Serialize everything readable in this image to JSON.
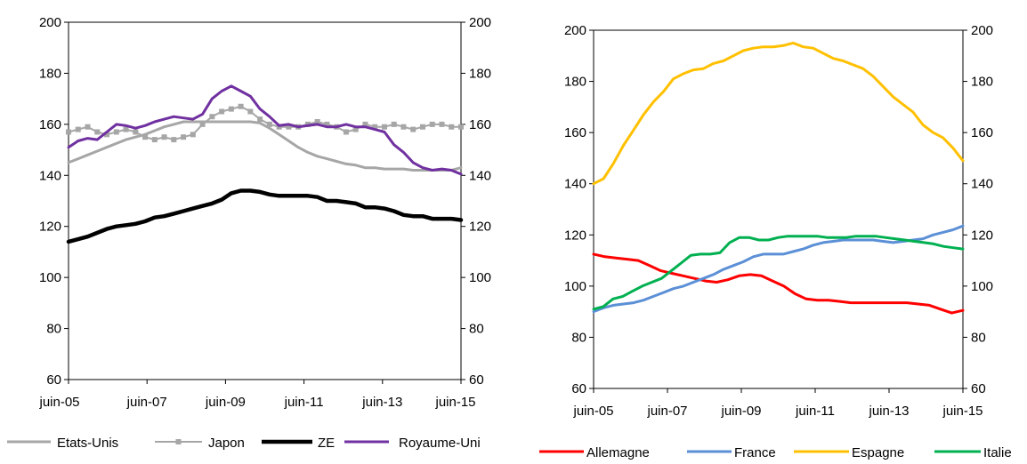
{
  "chart_data": [
    {
      "type": "line",
      "x_tick_labels": [
        "juin-05",
        "juin-07",
        "juin-09",
        "juin-11",
        "juin-13",
        "juin-15"
      ],
      "ylim": [
        60,
        200
      ],
      "y_ticks": [
        60,
        80,
        100,
        120,
        140,
        160,
        180,
        200
      ],
      "secondary_y_ticks": [
        60,
        80,
        100,
        120,
        140,
        160,
        180,
        200
      ],
      "grid": false,
      "legend_position": "bottom",
      "series": [
        {
          "name": "Etats-Unis",
          "color": "#a6a6a6",
          "marker": "none",
          "values": [
            145,
            146.5,
            148,
            149.5,
            151,
            152.5,
            154,
            155,
            156,
            157.5,
            159,
            160,
            161,
            161,
            161,
            161,
            161,
            161,
            161,
            161,
            160.5,
            158.5,
            156,
            153.5,
            151,
            149,
            147.5,
            146.5,
            145.5,
            144.5,
            144,
            143,
            143,
            142.5,
            142.5,
            142.5,
            142,
            142,
            142,
            142,
            142,
            143
          ]
        },
        {
          "name": "Japon",
          "color": "#a6a6a6",
          "marker": "square",
          "values": [
            157,
            158,
            159,
            157,
            156,
            157,
            158,
            157,
            155,
            154,
            155,
            154,
            155,
            156,
            160,
            163,
            165,
            166,
            167,
            165,
            162,
            160,
            159,
            159,
            159,
            160,
            161,
            160,
            159,
            157,
            158,
            160,
            159,
            159,
            160,
            159,
            158,
            159,
            160,
            160,
            159,
            159
          ]
        },
        {
          "name": "ZE",
          "color": "#000000",
          "marker": "none",
          "values": [
            114,
            115,
            116,
            117.5,
            119,
            120,
            120.5,
            121,
            122,
            123.5,
            124,
            125,
            126,
            127,
            128,
            129,
            130.5,
            133,
            134,
            134,
            133.5,
            132.5,
            132,
            132,
            132,
            132,
            131.5,
            130,
            130,
            129.5,
            129,
            127.5,
            127.5,
            127,
            126,
            124.5,
            124,
            124,
            123,
            123,
            123,
            122.5
          ]
        },
        {
          "name": "Royaume-Uni",
          "color": "#7030a0",
          "marker": "none",
          "values": [
            151,
            153.5,
            154.5,
            154,
            157,
            160,
            159.5,
            158.5,
            159.5,
            161,
            162,
            163,
            162.5,
            162,
            164,
            170,
            173,
            175,
            173,
            171,
            166,
            163,
            159.5,
            160,
            159,
            159.5,
            160,
            159,
            159,
            160,
            159,
            159,
            158,
            157,
            152,
            149,
            145,
            143,
            142,
            142.5,
            142,
            140.5
          ]
        }
      ]
    },
    {
      "type": "line",
      "x_tick_labels": [
        "juin-05",
        "juin-07",
        "juin-09",
        "juin-11",
        "juin-13",
        "juin-15"
      ],
      "ylim": [
        60,
        200
      ],
      "y_ticks": [
        60,
        80,
        100,
        120,
        140,
        160,
        180,
        200
      ],
      "secondary_y_ticks": [
        60,
        80,
        100,
        120,
        140,
        160,
        180,
        200
      ],
      "grid": false,
      "legend_position": "bottom",
      "series": [
        {
          "name": "Allemagne",
          "color": "#ff0000",
          "values": [
            112.5,
            111.5,
            111,
            110.5,
            110,
            108,
            106,
            105,
            104,
            103,
            102,
            101.5,
            102.5,
            104,
            104.5,
            104,
            102,
            100,
            97,
            95,
            94.5,
            94.5,
            94,
            93.5,
            93.5,
            93.5,
            93.5,
            93.5,
            93.5,
            93,
            92.5,
            91,
            89.5,
            90.5
          ]
        },
        {
          "name": "France",
          "color": "#5b8fd6",
          "values": [
            90,
            91.5,
            92.5,
            93,
            93.5,
            94.5,
            96,
            97.5,
            99,
            100,
            101.5,
            103,
            104.5,
            106.5,
            108,
            109.5,
            111.5,
            112.5,
            112.5,
            112.5,
            113.5,
            114.5,
            116,
            117,
            117.5,
            118,
            118,
            118,
            118,
            117.5,
            117,
            117.5,
            118,
            118.5,
            120,
            121,
            122,
            123.5
          ]
        },
        {
          "name": "Espagne",
          "color": "#ffc000",
          "values": [
            140,
            142,
            148,
            155,
            161,
            167,
            172,
            176,
            181,
            183,
            184.5,
            185,
            187,
            188,
            190,
            192,
            193,
            193.5,
            193.5,
            194,
            195,
            193.5,
            193,
            191,
            189,
            188,
            186.5,
            185,
            182,
            178,
            174,
            171,
            168,
            163,
            160,
            158,
            154,
            149
          ]
        },
        {
          "name": "Italie",
          "color": "#00b050",
          "values": [
            91,
            92,
            95,
            96,
            98,
            100,
            101.5,
            103,
            106,
            109,
            112,
            112.5,
            112.5,
            113,
            117,
            119,
            119,
            118,
            118,
            119,
            119.5,
            119.5,
            119.5,
            119.5,
            119,
            119,
            119,
            119.5,
            119.5,
            119.5,
            119,
            118.5,
            118,
            117.5,
            117,
            116.5,
            115.5,
            115,
            114.5
          ]
        }
      ]
    }
  ]
}
